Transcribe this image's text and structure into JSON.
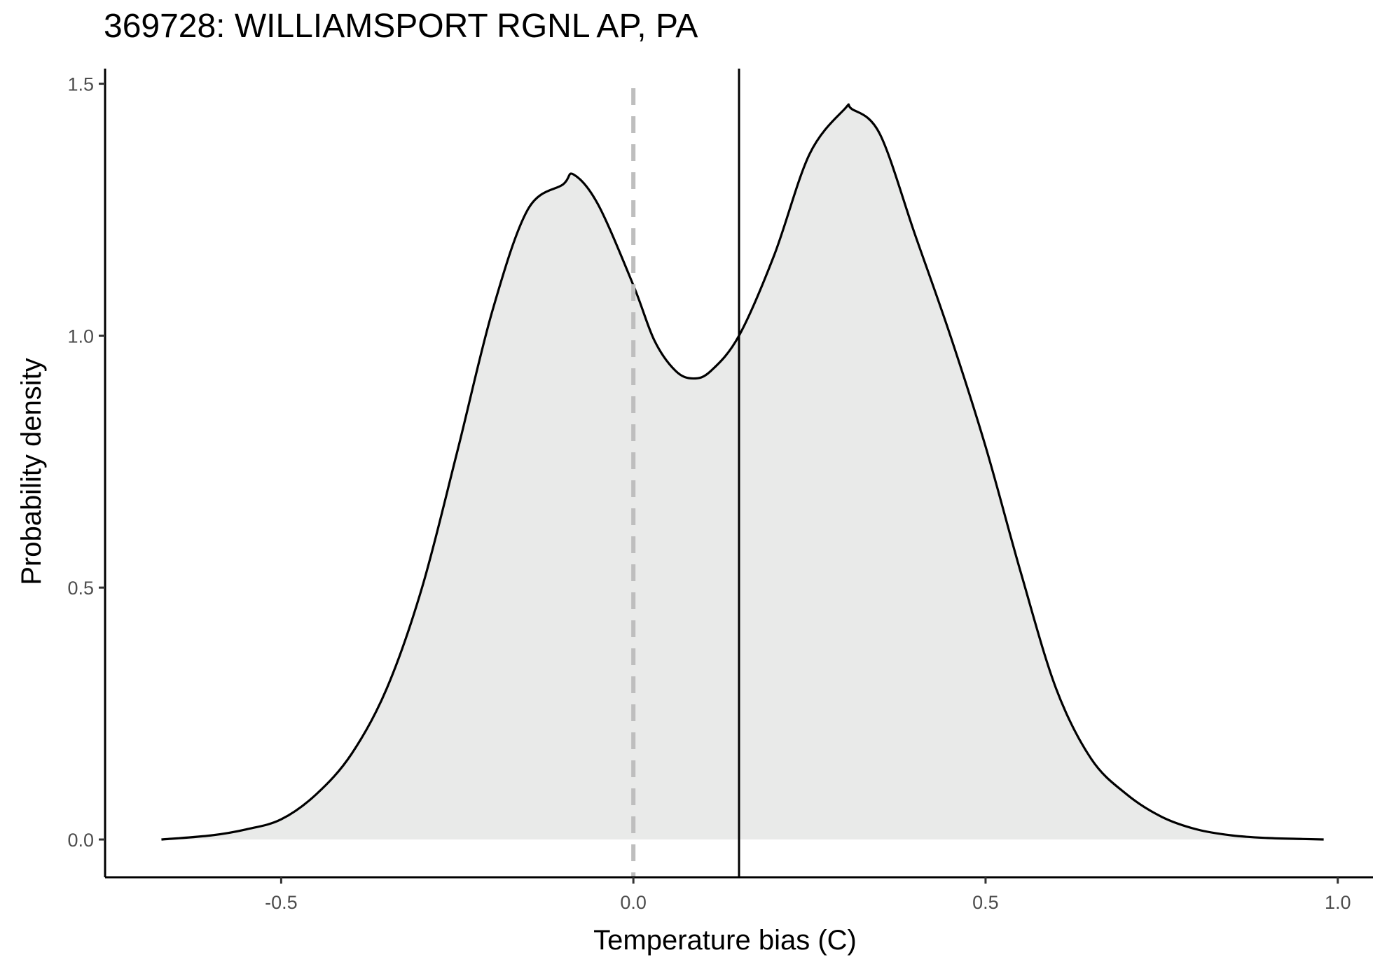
{
  "chart_data": {
    "type": "area",
    "title": "369728: WILLIAMSPORT RGNL AP, PA",
    "xlabel": "Temperature bias (C)",
    "ylabel": "Probability density",
    "xlim": [
      -0.75,
      1.05
    ],
    "ylim": [
      -0.075,
      1.53
    ],
    "x_ticks": [
      -0.5,
      0.0,
      0.5,
      1.0
    ],
    "x_tick_labels": [
      "-0.5",
      "0.0",
      "0.5",
      "1.0"
    ],
    "y_ticks": [
      0.0,
      0.5,
      1.0,
      1.5
    ],
    "y_tick_labels": [
      "0.0",
      "0.5",
      "1.0",
      "1.5"
    ],
    "grid": false,
    "reference_lines": [
      {
        "x": 0.0,
        "style": "dashed",
        "color": "#bebebe"
      },
      {
        "x": 0.15,
        "style": "solid",
        "color": "#000000"
      }
    ],
    "series": [
      {
        "fill": "#e9eae9",
        "stroke": "#000000",
        "x": [
          -0.67,
          -0.6,
          -0.55,
          -0.5,
          -0.45,
          -0.4,
          -0.35,
          -0.3,
          -0.25,
          -0.2,
          -0.15,
          -0.1,
          -0.085,
          -0.05,
          0.0,
          0.03,
          0.06,
          0.085,
          0.11,
          0.15,
          0.2,
          0.25,
          0.3,
          0.31,
          0.35,
          0.4,
          0.45,
          0.5,
          0.55,
          0.6,
          0.65,
          0.7,
          0.75,
          0.8,
          0.85,
          0.9,
          0.95,
          0.98
        ],
        "y": [
          0.0,
          0.008,
          0.02,
          0.04,
          0.09,
          0.17,
          0.3,
          0.5,
          0.77,
          1.05,
          1.25,
          1.3,
          1.32,
          1.26,
          1.1,
          0.99,
          0.93,
          0.915,
          0.93,
          1.0,
          1.16,
          1.36,
          1.45,
          1.45,
          1.4,
          1.2,
          1.0,
          0.78,
          0.53,
          0.3,
          0.16,
          0.09,
          0.045,
          0.02,
          0.008,
          0.003,
          0.001,
          0.0
        ]
      }
    ]
  }
}
